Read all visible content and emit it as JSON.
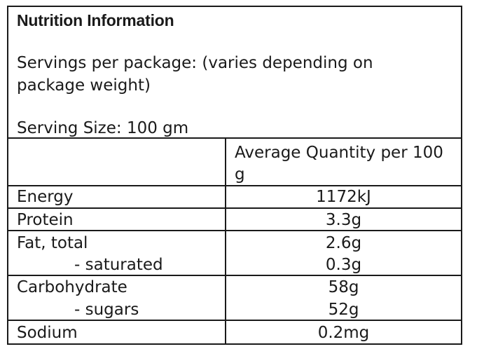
{
  "title": "Nutrition Information",
  "servings_text": "Servings per package: (varies depending on package weight)",
  "serving_size_text": "Serving Size: 100 gm",
  "column_header": "Average Quantity per 100 g",
  "rows": [
    {
      "name": "Energy",
      "value": "1172kJ"
    },
    {
      "name": "Protein",
      "value": "3.3g"
    },
    {
      "name": "Fat, total",
      "value": "2.6g"
    },
    {
      "name": "- saturated",
      "value": "0.3g"
    },
    {
      "name": "Carbohydrate",
      "value": "58g"
    },
    {
      "name": "- sugars",
      "value": "52g"
    },
    {
      "name": "Sodium",
      "value": "0.2mg"
    }
  ]
}
